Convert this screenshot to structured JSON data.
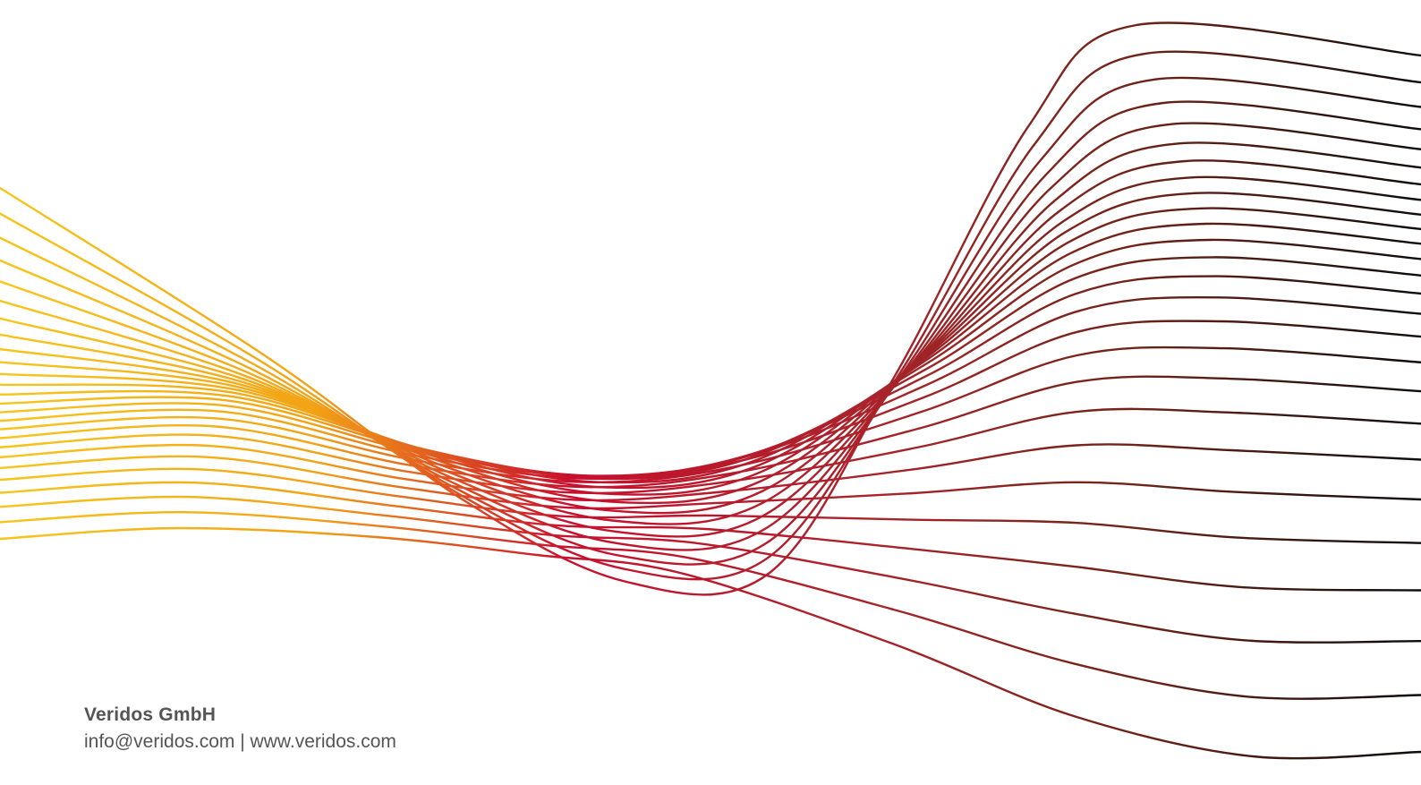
{
  "footer": {
    "company": "Veridos GmbH",
    "email": "info@veridos.com",
    "separator": "|",
    "website": "www.veridos.com"
  },
  "art": {
    "colors": {
      "yellow": "#f7c51a",
      "orange": "#ee7a1a",
      "red": "#c8102e",
      "dark_red": "#7a2416",
      "black": "#101010"
    }
  }
}
